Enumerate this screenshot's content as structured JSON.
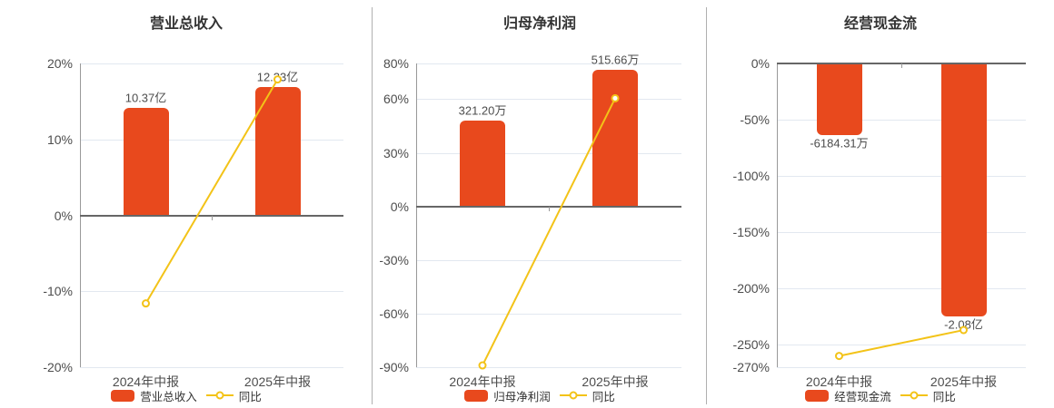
{
  "page": {
    "background": "#ffffff",
    "legend_position": "bottom",
    "grid": true
  },
  "colors": {
    "bar": "#e8491d",
    "line": "#f3c318",
    "grid": "#e2e8f0",
    "zero_axis": "#666666",
    "y_axis": "#999999",
    "text": "#4d4d4d",
    "title": "#333333",
    "separator": "#b0b0b0"
  },
  "chart_data": [
    {
      "type": "bar+line",
      "title": "营业总收入",
      "categories": [
        "2024年中报",
        "2025年中报"
      ],
      "bar_series": {
        "name": "营业总收入",
        "value_labels": [
          "10.37亿",
          "12.23亿"
        ],
        "plotted_extent_pct": [
          14.2,
          16.9
        ]
      },
      "line_series": {
        "name": "同比",
        "values_pct": [
          -11.6,
          17.9
        ]
      },
      "yticks_pct": [
        20,
        10,
        0,
        -10,
        -20
      ],
      "ylim_pct": [
        -20,
        20
      ],
      "ytick_suffix": "%",
      "legend": [
        "营业总收入",
        "同比"
      ]
    },
    {
      "type": "bar+line",
      "title": "归母净利润",
      "categories": [
        "2024年中报",
        "2025年中报"
      ],
      "bar_series": {
        "name": "归母净利润",
        "value_labels": [
          "321.20万",
          "515.66万"
        ],
        "plotted_extent_pct": [
          48.0,
          76.4
        ]
      },
      "line_series": {
        "name": "同比",
        "values_pct": [
          -89.0,
          60.5
        ]
      },
      "yticks_pct": [
        80,
        60,
        30,
        0,
        -30,
        -60,
        -90
      ],
      "ylim_pct": [
        -90,
        80
      ],
      "ytick_suffix": "%",
      "legend": [
        "归母净利润",
        "同比"
      ]
    },
    {
      "type": "bar+line",
      "title": "经营现金流",
      "categories": [
        "2024年中报",
        "2025年中报"
      ],
      "bar_series": {
        "name": "经营现金流",
        "value_labels": [
          "-6184.31万",
          "-2.08亿"
        ],
        "plotted_extent_pct": [
          -63.7,
          -225.0
        ]
      },
      "line_series": {
        "name": "同比",
        "values_pct": [
          -260.0,
          -237.0
        ]
      },
      "yticks_pct": [
        0,
        -50,
        -100,
        -150,
        -200,
        -250,
        -270
      ],
      "ylim_pct": [
        -270,
        0
      ],
      "ytick_suffix": "%",
      "legend": [
        "经营现金流",
        "同比"
      ]
    }
  ]
}
